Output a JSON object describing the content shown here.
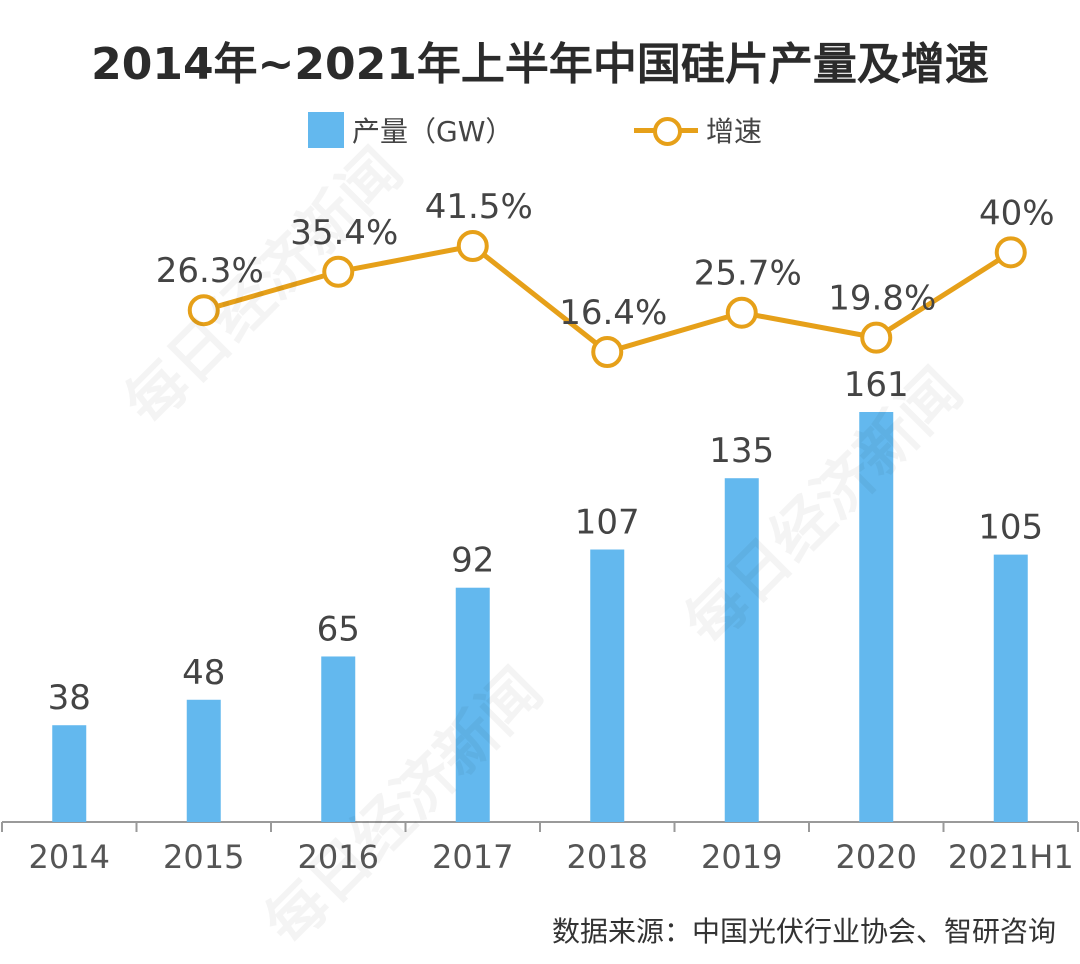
{
  "chart_data": {
    "type": "bar",
    "title": "2014年~2021年上半年中国硅片产量及增速",
    "categories": [
      "2014",
      "2015",
      "2016",
      "2017",
      "2018",
      "2019",
      "2020",
      "2021H1"
    ],
    "series": [
      {
        "name": "产量（GW）",
        "type": "bar",
        "color": "#63B8EE",
        "values": [
          38,
          48,
          65,
          92,
          107,
          135,
          161,
          105
        ],
        "labels": [
          "38",
          "48",
          "65",
          "92",
          "107",
          "135",
          "161",
          "105"
        ]
      },
      {
        "name": "增速",
        "type": "line",
        "color": "#E6A019",
        "values": [
          null,
          26.3,
          35.4,
          41.5,
          16.4,
          25.7,
          19.8,
          40
        ],
        "labels": [
          "",
          "26.3%",
          "35.4%",
          "41.5%",
          "16.4%",
          "25.7%",
          "19.8%",
          "40%"
        ]
      }
    ],
    "legend_position": "top-center",
    "grid": false
  },
  "source": "数据来源：中国光伏行业协会、智研咨询",
  "watermark": "每日经济新闻"
}
